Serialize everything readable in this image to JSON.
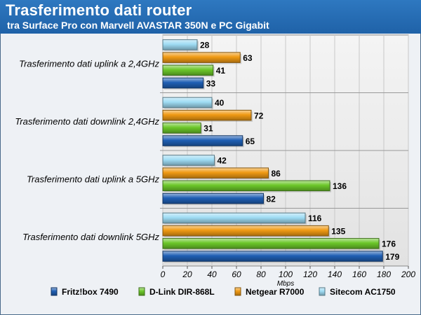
{
  "chart_data": {
    "type": "bar",
    "orientation": "horizontal",
    "title": "Trasferimento dati router",
    "subtitle": "tra Surface Pro con Marvell AVASTAR 350N e PC Gigabit",
    "xlabel": "Mbps",
    "xlim": [
      0,
      200
    ],
    "xticks": [
      0,
      20,
      40,
      60,
      80,
      100,
      120,
      140,
      160,
      180,
      200
    ],
    "grid": true,
    "legend_position": "bottom",
    "categories": [
      "Trasferimento dati uplink a 2,4GHz",
      "Trasferimento dati downlink 2,4GHz",
      "Trasferimento dati uplink a 5GHz",
      "Trasferimento dati downlink 5GHz"
    ],
    "series": [
      {
        "name": "Fritz!box 7490",
        "color": "#1f5fb4",
        "values": [
          33,
          65,
          82,
          179
        ]
      },
      {
        "name": "D-Link DIR-868L",
        "color": "#6cc72a",
        "values": [
          41,
          31,
          136,
          176
        ]
      },
      {
        "name": "Netgear R7000",
        "color": "#f09a14",
        "values": [
          63,
          72,
          86,
          135
        ]
      },
      {
        "name": "Sitecom AC1750",
        "color": "#9fdcf4",
        "values": [
          28,
          40,
          42,
          116
        ]
      }
    ]
  }
}
